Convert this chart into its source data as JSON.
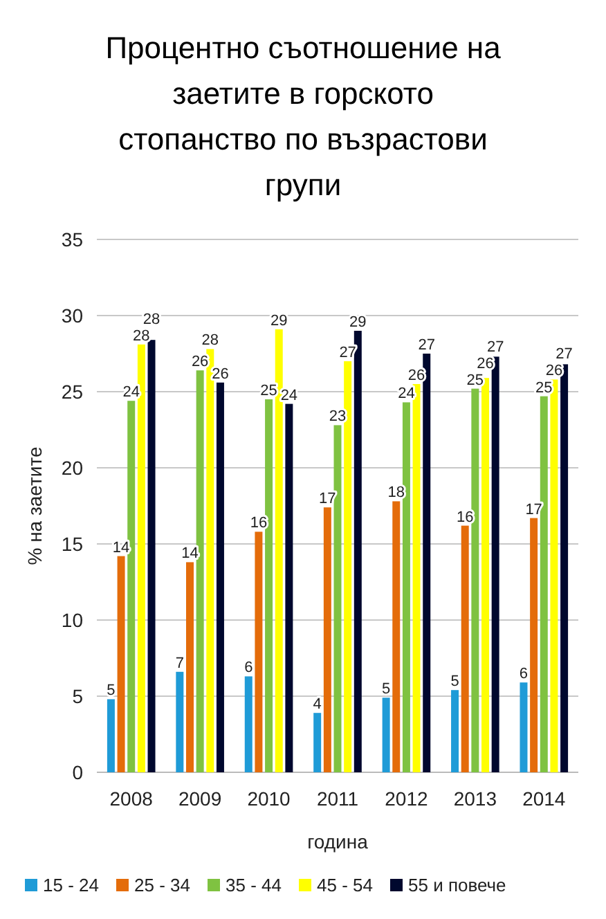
{
  "chart_data": {
    "type": "bar",
    "title": "Процентно съотношение на заетите в горското стопанство по възрастови групи",
    "xlabel": "година",
    "ylabel": "% на заетите",
    "categories": [
      "2008",
      "2009",
      "2010",
      "2011",
      "2012",
      "2013",
      "2014"
    ],
    "ylim": [
      0,
      35
    ],
    "yticks": [
      0,
      5,
      10,
      15,
      20,
      25,
      30,
      35
    ],
    "grid": "y",
    "legend": "bottom",
    "series": [
      {
        "name": "15 - 24",
        "color": "#1f9bd7",
        "values": [
          4.8,
          6.6,
          6.3,
          3.9,
          4.9,
          5.4,
          5.9
        ],
        "value_labels": [
          "5",
          "7",
          "6",
          "4",
          "5",
          "5",
          "6"
        ]
      },
      {
        "name": "25 - 34",
        "color": "#e46c0a",
        "values": [
          14.2,
          13.8,
          15.8,
          17.4,
          17.8,
          16.2,
          16.7
        ],
        "value_labels": [
          "14",
          "14",
          "16",
          "17",
          "18",
          "16",
          "17"
        ]
      },
      {
        "name": "35 - 44",
        "color": "#7fc241",
        "values": [
          24.4,
          26.4,
          24.5,
          22.8,
          24.3,
          25.2,
          24.7
        ],
        "value_labels": [
          "24",
          "26",
          "25",
          "23",
          "24",
          "25",
          "25"
        ]
      },
      {
        "name": "45 - 54",
        "color": "#ffff00",
        "values": [
          28.1,
          27.8,
          29.1,
          27.0,
          25.5,
          25.9,
          25.8
        ],
        "value_labels": [
          "28",
          "28",
          "29",
          "27",
          "26",
          "26",
          "26"
        ]
      },
      {
        "name": "55 и повече",
        "color": "#00082e",
        "values": [
          28.4,
          25.6,
          24.2,
          29.0,
          27.5,
          27.3,
          26.8
        ],
        "value_labels": [
          "28",
          "26",
          "24",
          "29",
          "27",
          "27",
          "27"
        ]
      }
    ]
  }
}
